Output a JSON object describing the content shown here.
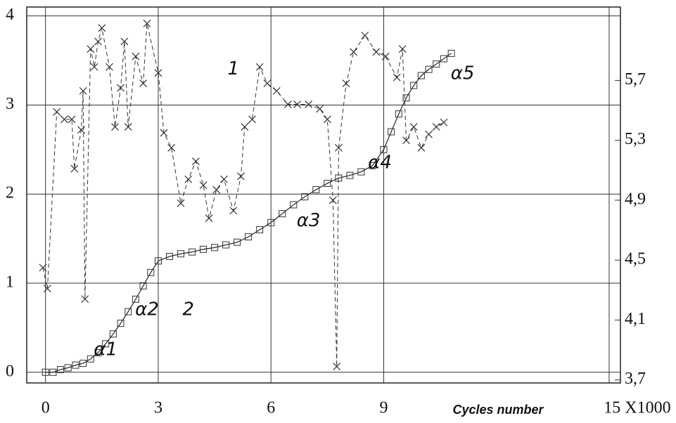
{
  "chart_data": {
    "type": "scatter",
    "x_label": "Cycles number",
    "xlim": [
      -0.5,
      15.3
    ],
    "ylim": [
      -0.12,
      4.1
    ],
    "y2lim": [
      3.68,
      6.19
    ],
    "xticks": [
      0,
      3,
      6,
      9,
      {
        "value": 15,
        "label": "15 X1000"
      }
    ],
    "yticks": [
      0,
      1,
      2,
      3,
      4
    ],
    "y2ticks": [
      {
        "value": 3.7,
        "label": "3,7"
      },
      {
        "value": 4.1,
        "label": "4,1"
      },
      {
        "value": 4.5,
        "label": "4,5"
      },
      {
        "value": 4.9,
        "label": "4,9"
      },
      {
        "value": 5.3,
        "label": "5,3"
      },
      {
        "value": 5.7,
        "label": "5,7"
      }
    ],
    "grid": true,
    "series": [
      {
        "name": "1",
        "axis": "y2",
        "marker": "x",
        "color": "#333333",
        "x": [
          -0.07,
          0.05,
          0.3,
          0.5,
          0.7,
          0.77,
          0.95,
          1.0,
          1.05,
          1.2,
          1.3,
          1.4,
          1.5,
          1.7,
          1.85,
          2.0,
          2.1,
          2.2,
          2.4,
          2.6,
          2.7,
          3.0,
          3.15,
          3.35,
          3.6,
          3.8,
          4.0,
          4.2,
          4.35,
          4.55,
          4.75,
          5.0,
          5.2,
          5.3,
          5.5,
          5.7,
          5.9,
          6.15,
          6.45,
          6.7,
          7.0,
          7.3,
          7.5,
          7.65,
          7.75,
          7.8,
          8.0,
          8.2,
          8.5,
          8.8,
          9.05,
          9.35,
          9.5,
          9.6,
          9.8,
          10.0,
          10.2,
          10.4,
          10.6
        ],
        "values": [
          4.45,
          4.31,
          5.49,
          5.44,
          5.44,
          5.11,
          5.37,
          5.63,
          4.24,
          5.91,
          5.79,
          5.96,
          6.05,
          5.79,
          5.39,
          5.65,
          5.96,
          5.39,
          5.86,
          5.68,
          6.08,
          5.75,
          5.35,
          5.25,
          4.88,
          5.04,
          5.16,
          5.0,
          4.78,
          4.97,
          5.04,
          4.83,
          5.06,
          5.39,
          5.44,
          5.79,
          5.68,
          5.63,
          5.54,
          5.54,
          5.54,
          5.51,
          5.44,
          4.9,
          3.79,
          5.25,
          5.68,
          5.89,
          6.0,
          5.89,
          5.86,
          5.72,
          5.91,
          5.3,
          5.39,
          5.25,
          5.34,
          5.39,
          5.42
        ]
      },
      {
        "name": "2",
        "axis": "y",
        "marker": "square",
        "color": "#333333",
        "x": [
          0,
          0.2,
          0.4,
          0.6,
          0.8,
          1.0,
          1.2,
          1.4,
          1.6,
          1.8,
          2.0,
          2.2,
          2.4,
          2.6,
          2.8,
          3.0,
          3.3,
          3.6,
          3.9,
          4.2,
          4.5,
          4.8,
          5.1,
          5.4,
          5.7,
          6.0,
          6.3,
          6.6,
          6.9,
          7.2,
          7.5,
          7.8,
          8.1,
          8.4,
          8.7,
          9.0,
          9.2,
          9.4,
          9.6,
          9.8,
          10.0,
          10.2,
          10.4,
          10.6,
          10.8
        ],
        "values": [
          0,
          0,
          0.03,
          0.05,
          0.08,
          0.1,
          0.15,
          0.22,
          0.32,
          0.43,
          0.55,
          0.68,
          0.82,
          0.97,
          1.12,
          1.25,
          1.3,
          1.33,
          1.35,
          1.38,
          1.4,
          1.43,
          1.46,
          1.52,
          1.6,
          1.68,
          1.78,
          1.88,
          1.97,
          2.05,
          2.12,
          2.18,
          2.21,
          2.25,
          2.32,
          2.5,
          2.7,
          2.9,
          3.08,
          3.22,
          3.33,
          3.4,
          3.46,
          3.52,
          3.58
        ]
      }
    ],
    "annotations": [
      {
        "text": "1",
        "x": 5.0,
        "y": 3.4
      },
      {
        "text": "2",
        "x": 3.8,
        "y": 0.7
      },
      {
        "text": "α1",
        "x": 1.6,
        "y": 0.25
      },
      {
        "text": "α2",
        "x": 2.7,
        "y": 0.7
      },
      {
        "text": "α3",
        "x": 7.0,
        "y": 1.7
      },
      {
        "text": "α4",
        "x": 8.9,
        "y": 2.35
      },
      {
        "text": "α5",
        "x": 11.1,
        "y": 3.35
      }
    ]
  }
}
